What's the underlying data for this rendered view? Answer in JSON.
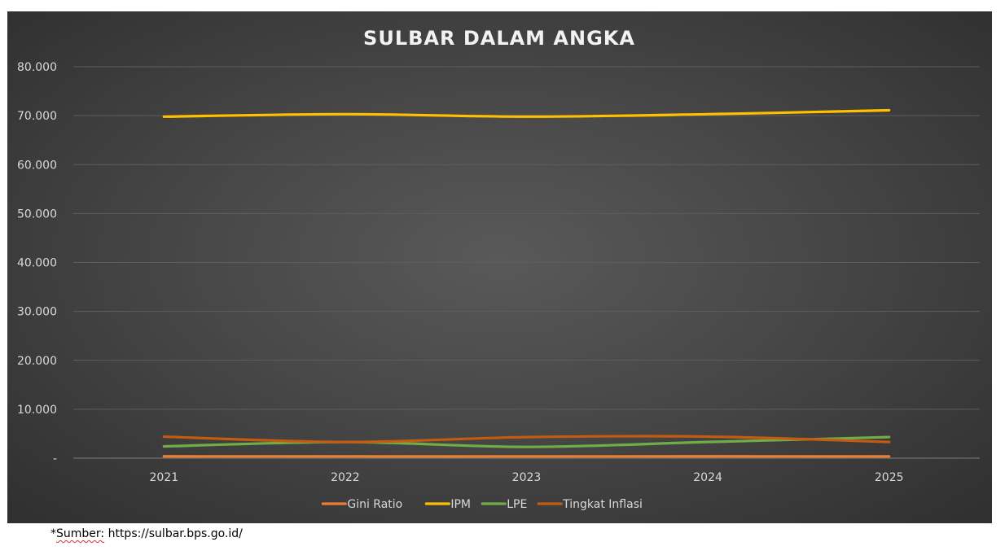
{
  "chart_data": {
    "type": "line",
    "title": "SULBAR DALAM ANGKA",
    "categories": [
      "2021",
      "2022",
      "2023",
      "2024",
      "2025"
    ],
    "y_ticks": [
      "-",
      "10.000",
      "20.000",
      "30.000",
      "40.000",
      "50.000",
      "60.000",
      "70.000",
      "80.000"
    ],
    "ylim": [
      0,
      80
    ],
    "grid": true,
    "legend_position": "bottom",
    "series": [
      {
        "name": "Gini Ratio",
        "color": "#ed7d31",
        "values": [
          0.37,
          0.36,
          0.36,
          0.37,
          0.36
        ]
      },
      {
        "name": "IPM",
        "color": "#ffc000",
        "values": [
          69.8,
          70.3,
          69.8,
          70.3,
          71.1
        ]
      },
      {
        "name": "LPE",
        "color": "#70ad47",
        "values": [
          2.4,
          3.3,
          2.3,
          3.3,
          4.3
        ]
      },
      {
        "name": "Tingkat Inflasi",
        "color": "#c55a11",
        "values": [
          4.4,
          3.3,
          4.3,
          4.4,
          3.3
        ]
      }
    ]
  },
  "footnote": {
    "prefix": "*",
    "label": "Sumber:",
    "url": " https://sulbar.bps.go.id/"
  }
}
